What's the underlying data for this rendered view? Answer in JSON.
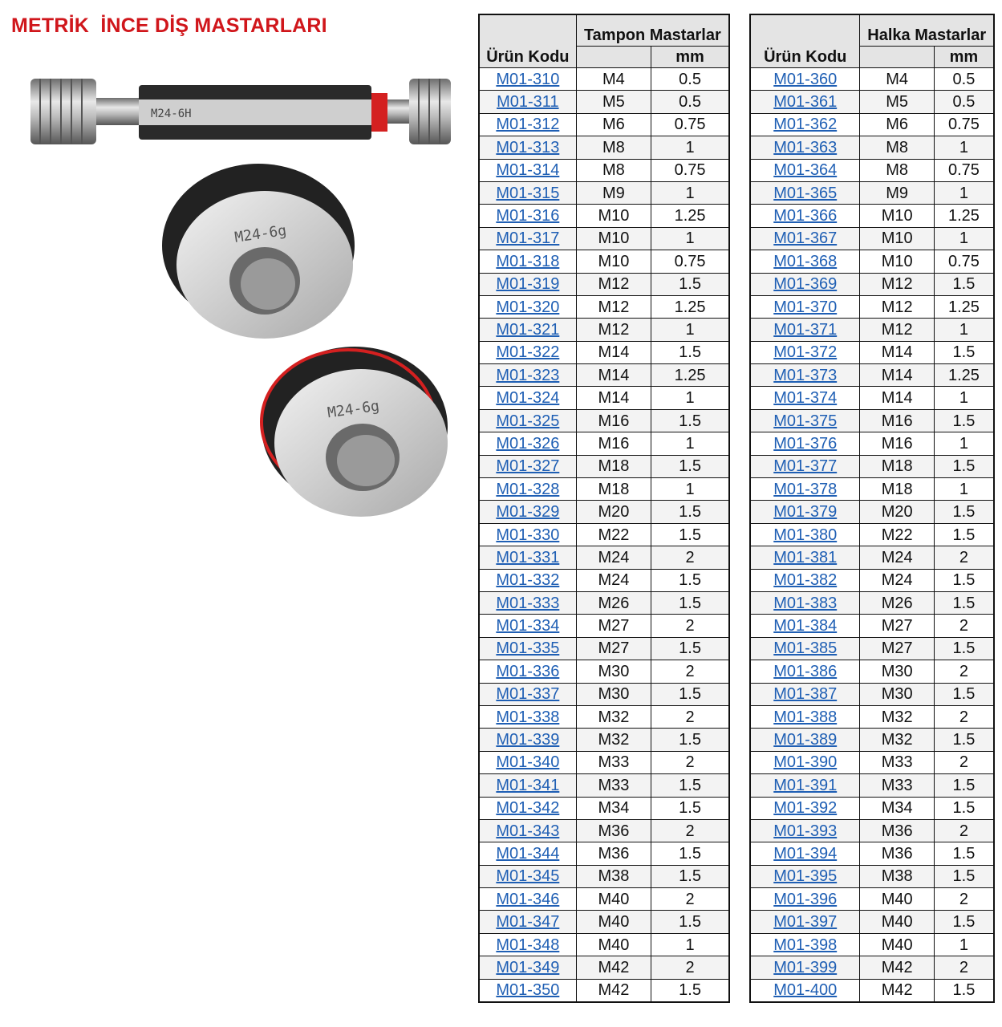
{
  "title": "METRİK  İNCE DİŞ MASTARLARI",
  "image_labels": {
    "plug": "M24-6H",
    "ring_go": "M24-6g",
    "ring_nogo": "M24-6g"
  },
  "colors": {
    "title": "#d0161b",
    "link": "#1f5fb4",
    "header_bg": "#e4e4e4",
    "nogo_band": "#d42020"
  },
  "tables": [
    {
      "group_header": "Tampon Mastarlar",
      "code_header": "Ürün Kodu",
      "unit_header": "mm",
      "rows": [
        [
          "M01-310",
          "M4",
          "0.5"
        ],
        [
          "M01-311",
          "M5",
          "0.5"
        ],
        [
          "M01-312",
          "M6",
          "0.75"
        ],
        [
          "M01-313",
          "M8",
          "1"
        ],
        [
          "M01-314",
          "M8",
          "0.75"
        ],
        [
          "M01-315",
          "M9",
          "1"
        ],
        [
          "M01-316",
          "M10",
          "1.25"
        ],
        [
          "M01-317",
          "M10",
          "1"
        ],
        [
          "M01-318",
          "M10",
          "0.75"
        ],
        [
          "M01-319",
          "M12",
          "1.5"
        ],
        [
          "M01-320",
          "M12",
          "1.25"
        ],
        [
          "M01-321",
          "M12",
          "1"
        ],
        [
          "M01-322",
          "M14",
          "1.5"
        ],
        [
          "M01-323",
          "M14",
          "1.25"
        ],
        [
          "M01-324",
          "M14",
          "1"
        ],
        [
          "M01-325",
          "M16",
          "1.5"
        ],
        [
          "M01-326",
          "M16",
          "1"
        ],
        [
          "M01-327",
          "M18",
          "1.5"
        ],
        [
          "M01-328",
          "M18",
          "1"
        ],
        [
          "M01-329",
          "M20",
          "1.5"
        ],
        [
          "M01-330",
          "M22",
          "1.5"
        ],
        [
          "M01-331",
          "M24",
          "2"
        ],
        [
          "M01-332",
          "M24",
          "1.5"
        ],
        [
          "M01-333",
          "M26",
          "1.5"
        ],
        [
          "M01-334",
          "M27",
          "2"
        ],
        [
          "M01-335",
          "M27",
          "1.5"
        ],
        [
          "M01-336",
          "M30",
          "2"
        ],
        [
          "M01-337",
          "M30",
          "1.5"
        ],
        [
          "M01-338",
          "M32",
          "2"
        ],
        [
          "M01-339",
          "M32",
          "1.5"
        ],
        [
          "M01-340",
          "M33",
          "2"
        ],
        [
          "M01-341",
          "M33",
          "1.5"
        ],
        [
          "M01-342",
          "M34",
          "1.5"
        ],
        [
          "M01-343",
          "M36",
          "2"
        ],
        [
          "M01-344",
          "M36",
          "1.5"
        ],
        [
          "M01-345",
          "M38",
          "1.5"
        ],
        [
          "M01-346",
          "M40",
          "2"
        ],
        [
          "M01-347",
          "M40",
          "1.5"
        ],
        [
          "M01-348",
          "M40",
          "1"
        ],
        [
          "M01-349",
          "M42",
          "2"
        ],
        [
          "M01-350",
          "M42",
          "1.5"
        ]
      ]
    },
    {
      "group_header": "Halka Mastarlar",
      "code_header": "Ürün Kodu",
      "unit_header": "mm",
      "rows": [
        [
          "M01-360",
          "M4",
          "0.5"
        ],
        [
          "M01-361",
          "M5",
          "0.5"
        ],
        [
          "M01-362",
          "M6",
          "0.75"
        ],
        [
          "M01-363",
          "M8",
          "1"
        ],
        [
          "M01-364",
          "M8",
          "0.75"
        ],
        [
          "M01-365",
          "M9",
          "1"
        ],
        [
          "M01-366",
          "M10",
          "1.25"
        ],
        [
          "M01-367",
          "M10",
          "1"
        ],
        [
          "M01-368",
          "M10",
          "0.75"
        ],
        [
          "M01-369",
          "M12",
          "1.5"
        ],
        [
          "M01-370",
          "M12",
          "1.25"
        ],
        [
          "M01-371",
          "M12",
          "1"
        ],
        [
          "M01-372",
          "M14",
          "1.5"
        ],
        [
          "M01-373",
          "M14",
          "1.25"
        ],
        [
          "M01-374",
          "M14",
          "1"
        ],
        [
          "M01-375",
          "M16",
          "1.5"
        ],
        [
          "M01-376",
          "M16",
          "1"
        ],
        [
          "M01-377",
          "M18",
          "1.5"
        ],
        [
          "M01-378",
          "M18",
          "1"
        ],
        [
          "M01-379",
          "M20",
          "1.5"
        ],
        [
          "M01-380",
          "M22",
          "1.5"
        ],
        [
          "M01-381",
          "M24",
          "2"
        ],
        [
          "M01-382",
          "M24",
          "1.5"
        ],
        [
          "M01-383",
          "M26",
          "1.5"
        ],
        [
          "M01-384",
          "M27",
          "2"
        ],
        [
          "M01-385",
          "M27",
          "1.5"
        ],
        [
          "M01-386",
          "M30",
          "2"
        ],
        [
          "M01-387",
          "M30",
          "1.5"
        ],
        [
          "M01-388",
          "M32",
          "2"
        ],
        [
          "M01-389",
          "M32",
          "1.5"
        ],
        [
          "M01-390",
          "M33",
          "2"
        ],
        [
          "M01-391",
          "M33",
          "1.5"
        ],
        [
          "M01-392",
          "M34",
          "1.5"
        ],
        [
          "M01-393",
          "M36",
          "2"
        ],
        [
          "M01-394",
          "M36",
          "1.5"
        ],
        [
          "M01-395",
          "M38",
          "1.5"
        ],
        [
          "M01-396",
          "M40",
          "2"
        ],
        [
          "M01-397",
          "M40",
          "1.5"
        ],
        [
          "M01-398",
          "M40",
          "1"
        ],
        [
          "M01-399",
          "M42",
          "2"
        ],
        [
          "M01-400",
          "M42",
          "1.5"
        ]
      ]
    }
  ]
}
